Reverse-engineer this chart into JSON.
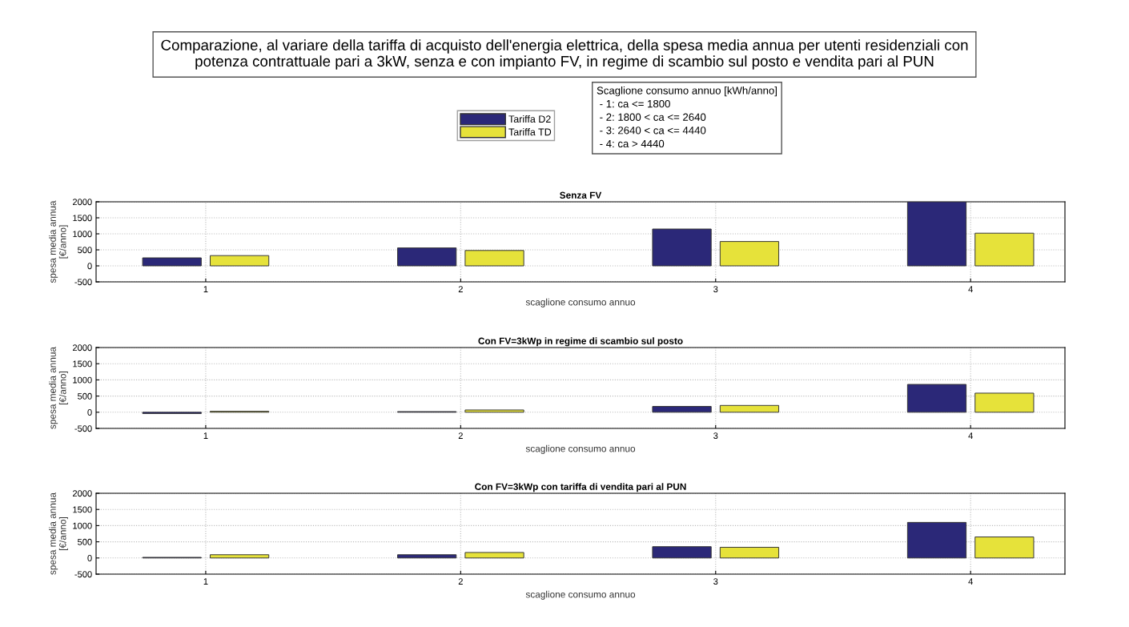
{
  "chart_data": [
    {
      "type": "other",
      "title": "Comparazione, al variare della tariffa di acquisto dell'energia elettrica, della spesa media annua per utenti residenziali con\npotenza contrattuale pari a 3kW, senza e con impianto FV, in regime di scambio sul posto e vendita pari al PUN",
      "annotations": [
        "Scaglione consumo annuo [kWh/anno]\n - 1: ca <= 1800\n - 2: 1800 < ca <= 2640\n - 3: 2640 < ca <= 4440\n - 4: ca > 4440"
      ]
    },
    {
      "type": "bar",
      "title": "Senza FV",
      "xlabel": "scaglione consumo annuo",
      "ylabel": "spesa media annua\n[€/anno]",
      "categories": [
        "1",
        "2",
        "3",
        "4"
      ],
      "ylim": [
        -500,
        2000
      ],
      "yticks": [
        -500,
        0,
        500,
        1000,
        1500,
        2000
      ],
      "grid": true,
      "legend": "top",
      "series": [
        {
          "name": "Tariffa D2",
          "color": "#2b2878",
          "values": [
            250,
            560,
            1150,
            2000
          ]
        },
        {
          "name": "Tariffa TD",
          "color": "#e6e23a",
          "values": [
            320,
            480,
            760,
            1020
          ]
        }
      ]
    },
    {
      "type": "bar",
      "title": "Con FV=3kWp in regime di scambio sul posto",
      "xlabel": "scaglione consumo annuo",
      "ylabel": "spesa media annua\n[€/anno]",
      "categories": [
        "1",
        "2",
        "3",
        "4"
      ],
      "ylim": [
        -500,
        2000
      ],
      "yticks": [
        -500,
        0,
        500,
        1000,
        1500,
        2000
      ],
      "grid": true,
      "series": [
        {
          "color": "#2b2878",
          "values": [
            -40,
            20,
            180,
            860
          ]
        },
        {
          "color": "#e6e23a",
          "values": [
            30,
            70,
            210,
            590
          ]
        }
      ]
    },
    {
      "type": "bar",
      "title": "Con FV=3kWp con tariffa di vendita pari al PUN",
      "xlabel": "scaglione consumo annuo",
      "ylabel": "spesa media annua\n[€/anno]",
      "categories": [
        "1",
        "2",
        "3",
        "4"
      ],
      "ylim": [
        -500,
        2000
      ],
      "yticks": [
        -500,
        0,
        500,
        1000,
        1500,
        2000
      ],
      "grid": true,
      "series": [
        {
          "color": "#2b2878",
          "values": [
            20,
            100,
            350,
            1100
          ]
        },
        {
          "color": "#e6e23a",
          "values": [
            100,
            170,
            330,
            650
          ]
        }
      ]
    }
  ]
}
